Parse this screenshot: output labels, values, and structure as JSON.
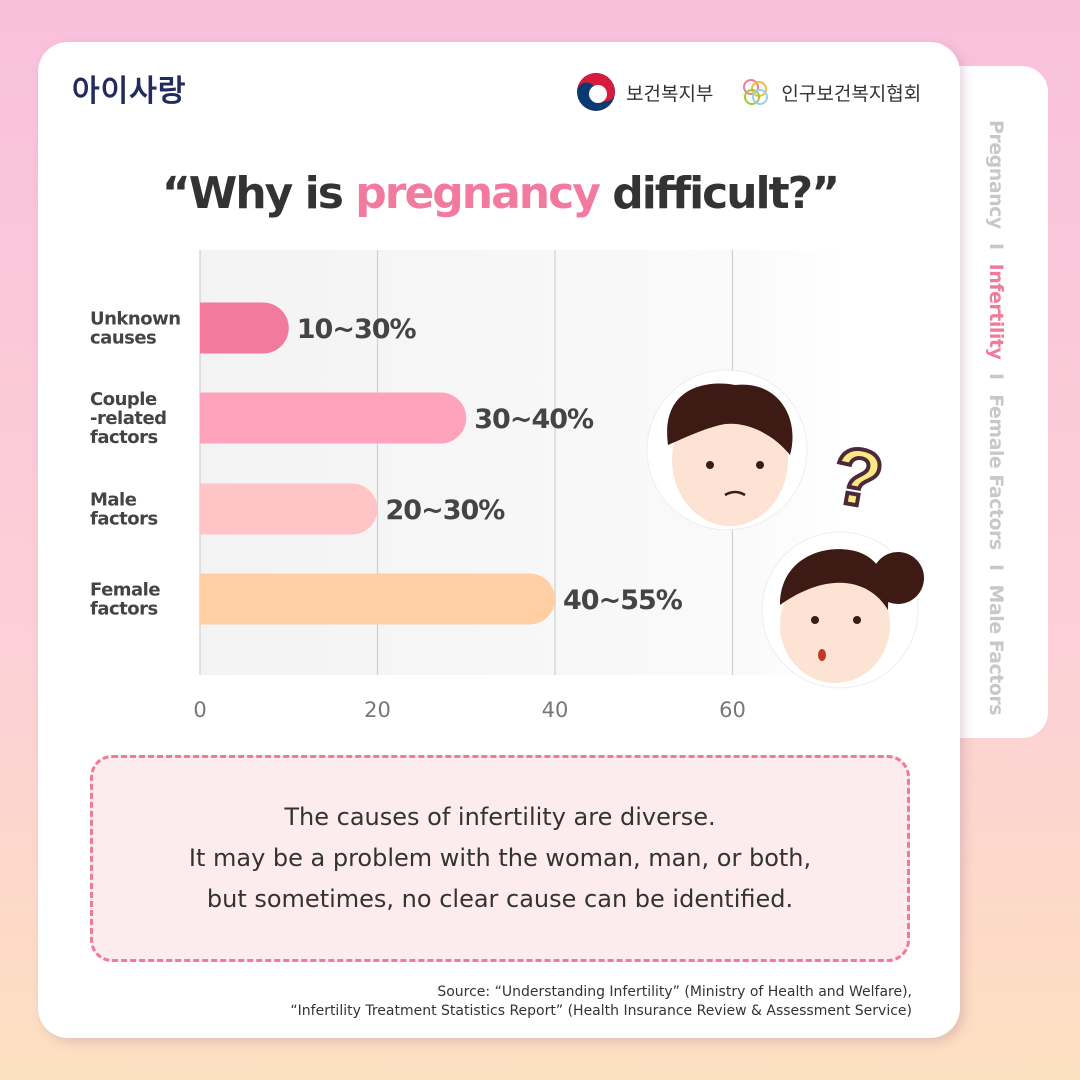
{
  "brand": "아이사랑",
  "logos": {
    "ministry": "보건복지부",
    "association": "인구보건복지협회"
  },
  "side_nav": {
    "items": [
      "Pregnancy",
      "Infertility",
      "Female Factors",
      "Male Factors"
    ],
    "active": "Infertility",
    "separator": "I"
  },
  "title": {
    "pre": "“Why is ",
    "highlight": "pregnancy",
    "post": " difficult?”"
  },
  "chart_data": {
    "type": "bar",
    "orientation": "horizontal",
    "categories": [
      "Unknown causes",
      "Couple -related factors",
      "Male factors",
      "Female factors"
    ],
    "category_lines": [
      [
        "Unknown",
        "causes"
      ],
      [
        "Couple",
        "-related",
        "factors"
      ],
      [
        "Male",
        "factors"
      ],
      [
        "Female",
        "factors"
      ]
    ],
    "values": [
      10,
      30,
      20,
      40
    ],
    "data_labels": [
      "10~30%",
      "30~40%",
      "20~30%",
      "40~55%"
    ],
    "colors": [
      "#f27a9c",
      "#ffa3bd",
      "#ffc4c6",
      "#ffcfa3"
    ],
    "xticks": [
      0,
      20,
      40,
      60
    ],
    "xlim": [
      0,
      72
    ],
    "grid": true,
    "title": "",
    "xlabel": "",
    "ylabel": ""
  },
  "note": [
    "The causes of infertility are diverse.",
    "It may be a problem with the woman, man, or both,",
    "but sometimes, no clear cause can be identified."
  ],
  "source": [
    "Source: “Understanding Infertility” (Ministry of Health and Welfare),",
    "“Infertility Treatment Statistics Report” (Health Insurance Review & Assessment Service)"
  ]
}
